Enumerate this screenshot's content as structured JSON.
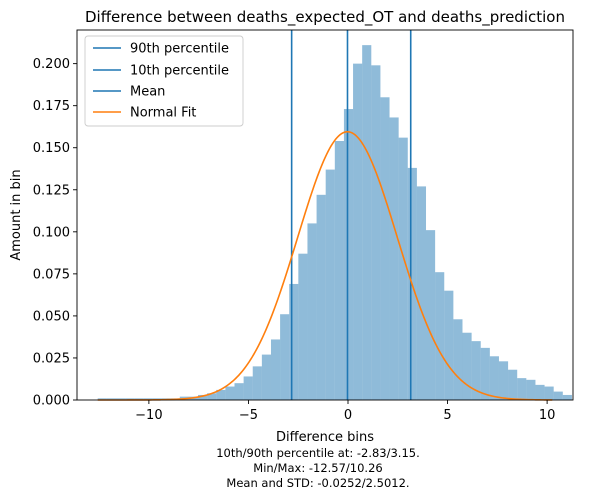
{
  "chart_data": {
    "type": "bar",
    "title": "Difference between deaths_expected_OT and deaths_prediction",
    "xlabel": "Difference bins",
    "ylabel": "Amount in bin",
    "xlim": [
      -13.61,
      11.3
    ],
    "ylim": [
      0,
      0.22
    ],
    "xticks": [
      -10,
      -5,
      0,
      5,
      10
    ],
    "yticks": [
      0.0,
      0.025,
      0.05,
      0.075,
      0.1,
      0.125,
      0.15,
      0.175,
      0.2
    ],
    "ytick_labels": [
      "0.000",
      "0.025",
      "0.050",
      "0.075",
      "0.100",
      "0.125",
      "0.150",
      "0.175",
      "0.200"
    ],
    "histogram": {
      "bin_start": -12.57,
      "bin_width": 0.458,
      "values": [
        0.001,
        0.001,
        0.001,
        0.001,
        0.001,
        0.001,
        0.001,
        0.001,
        0.001,
        0.002,
        0.002,
        0.003,
        0.004,
        0.006,
        0.008,
        0.01,
        0.014,
        0.02,
        0.027,
        0.036,
        0.051,
        0.069,
        0.087,
        0.105,
        0.122,
        0.137,
        0.154,
        0.173,
        0.2,
        0.211,
        0.199,
        0.18,
        0.168,
        0.156,
        0.138,
        0.127,
        0.101,
        0.076,
        0.065,
        0.048,
        0.04,
        0.035,
        0.031,
        0.026,
        0.023,
        0.018,
        0.013,
        0.012,
        0.009,
        0.008,
        0.005,
        0.003
      ],
      "color": "#1f77b4",
      "alpha": 0.5
    },
    "vlines": [
      {
        "name": "90th percentile",
        "x": 3.15,
        "color": "#1f77b4"
      },
      {
        "name": "10th percentile",
        "x": -2.83,
        "color": "#1f77b4"
      },
      {
        "name": "Mean",
        "x": -0.0252,
        "color": "#1f77b4"
      }
    ],
    "normal_fit": {
      "name": "Normal Fit",
      "mean": -0.0252,
      "std": 2.5012,
      "x_range": [
        -12.57,
        10.26
      ],
      "color": "#ff7f0e"
    },
    "legend": {
      "placement": "top-left",
      "entries": [
        "90th percentile",
        "10th percentile",
        "Mean",
        "Normal Fit"
      ]
    },
    "grid": false
  },
  "caption": {
    "line1": "10th/90th percentile at: -2.83/3.15.",
    "line2": "Min/Max: -12.57/10.26",
    "line3": "Mean and STD: -0.0252/2.5012."
  }
}
